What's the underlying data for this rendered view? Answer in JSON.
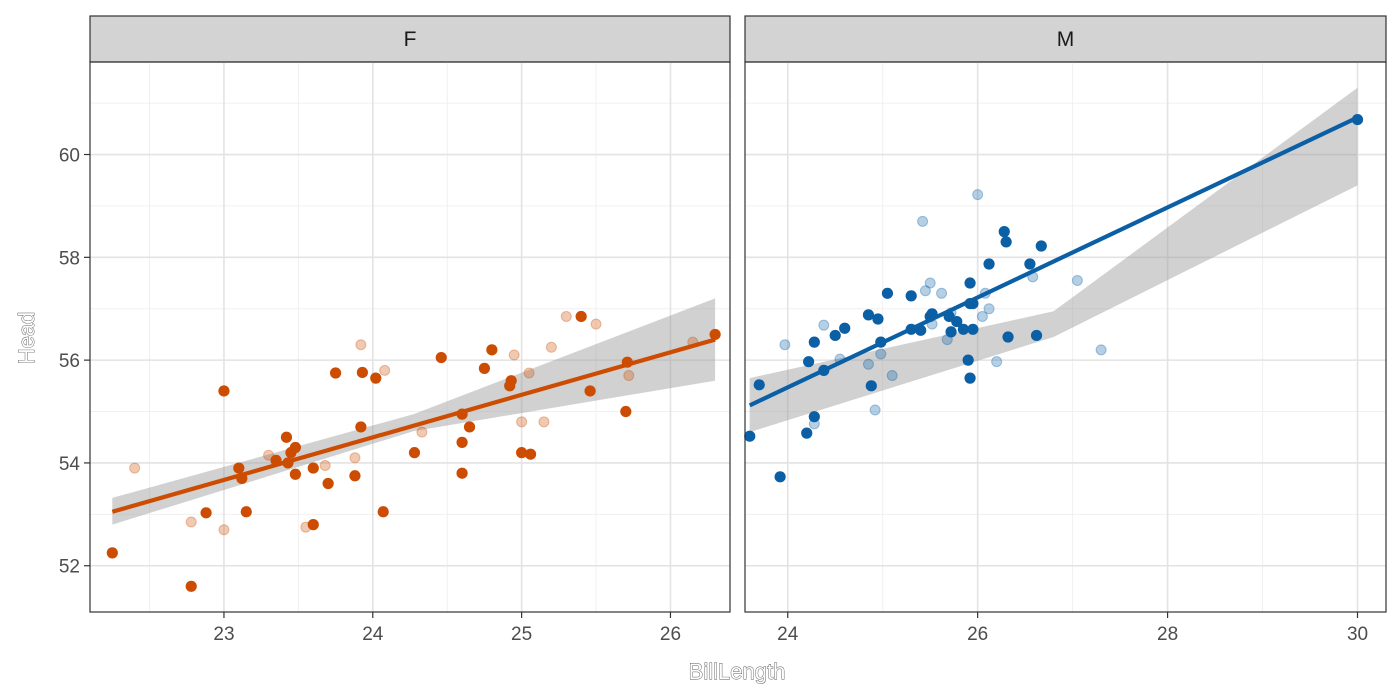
{
  "chart_data": {
    "type": "scatter",
    "xlabel": "BillLength",
    "ylabel": "Head",
    "ylim": [
      51.1,
      61.8
    ],
    "y_ticks": [
      52,
      54,
      56,
      58,
      60
    ],
    "grid": true,
    "facet_by": "Sex",
    "panels": [
      {
        "name": "F",
        "color": "#CC4C02",
        "xlim": [
          22.1,
          26.4
        ],
        "x_ticks": [
          23,
          24,
          25,
          26
        ],
        "points_solid": [
          [
            22.25,
            52.25
          ],
          [
            22.78,
            51.6
          ],
          [
            22.88,
            53.03
          ],
          [
            23.0,
            55.4
          ],
          [
            23.1,
            53.9
          ],
          [
            23.12,
            53.7
          ],
          [
            23.15,
            53.05
          ],
          [
            23.35,
            54.05
          ],
          [
            23.42,
            54.5
          ],
          [
            23.43,
            54.0
          ],
          [
            23.45,
            54.2
          ],
          [
            23.48,
            54.3
          ],
          [
            23.48,
            53.78
          ],
          [
            23.6,
            53.9
          ],
          [
            23.6,
            52.8
          ],
          [
            23.7,
            53.6
          ],
          [
            23.75,
            55.75
          ],
          [
            23.88,
            53.75
          ],
          [
            23.92,
            54.7
          ],
          [
            23.93,
            55.76
          ],
          [
            24.02,
            55.65
          ],
          [
            24.07,
            53.05
          ],
          [
            24.28,
            54.2
          ],
          [
            24.46,
            56.05
          ],
          [
            24.6,
            54.95
          ],
          [
            24.6,
            54.4
          ],
          [
            24.6,
            53.8
          ],
          [
            24.65,
            54.7
          ],
          [
            24.75,
            55.84
          ],
          [
            24.8,
            56.2
          ],
          [
            24.92,
            55.5
          ],
          [
            24.93,
            55.6
          ],
          [
            25.0,
            54.2
          ],
          [
            25.06,
            54.17
          ],
          [
            25.4,
            56.85
          ],
          [
            25.46,
            55.4
          ],
          [
            25.7,
            55.0
          ],
          [
            25.71,
            55.96
          ],
          [
            26.3,
            56.5
          ]
        ],
        "points_faded": [
          [
            22.4,
            53.9
          ],
          [
            22.78,
            52.85
          ],
          [
            23.0,
            52.7
          ],
          [
            23.3,
            54.15
          ],
          [
            23.55,
            52.75
          ],
          [
            23.68,
            53.95
          ],
          [
            23.88,
            54.1
          ],
          [
            23.92,
            56.3
          ],
          [
            24.08,
            55.8
          ],
          [
            24.33,
            54.6
          ],
          [
            24.95,
            56.1
          ],
          [
            25.0,
            54.8
          ],
          [
            25.05,
            55.75
          ],
          [
            25.15,
            54.8
          ],
          [
            25.2,
            56.25
          ],
          [
            25.3,
            56.85
          ],
          [
            25.5,
            56.7
          ],
          [
            25.72,
            55.7
          ],
          [
            26.15,
            56.35
          ]
        ],
        "fit": {
          "x0": 22.25,
          "y0": 53.05,
          "x1": 26.3,
          "y1": 56.4
        },
        "band": {
          "lo0": 52.8,
          "hi0": 53.32,
          "lom": 54.62,
          "him": 54.95,
          "lo1": 55.6,
          "hi1": 57.2
        }
      },
      {
        "name": "M",
        "color": "#0B5FA5",
        "xlim": [
          23.55,
          30.3
        ],
        "x_ticks": [
          24,
          26,
          28,
          30
        ],
        "points_solid": [
          [
            23.6,
            54.52
          ],
          [
            23.7,
            55.52
          ],
          [
            23.92,
            53.73
          ],
          [
            24.2,
            54.58
          ],
          [
            24.22,
            55.97
          ],
          [
            24.28,
            56.35
          ],
          [
            24.28,
            54.9
          ],
          [
            24.38,
            55.8
          ],
          [
            24.5,
            56.48
          ],
          [
            24.6,
            56.62
          ],
          [
            24.85,
            56.88
          ],
          [
            24.88,
            55.5
          ],
          [
            24.95,
            56.8
          ],
          [
            24.98,
            56.35
          ],
          [
            25.05,
            57.3
          ],
          [
            25.3,
            57.25
          ],
          [
            25.3,
            56.6
          ],
          [
            25.4,
            56.58
          ],
          [
            25.5,
            56.85
          ],
          [
            25.52,
            56.9
          ],
          [
            25.7,
            56.85
          ],
          [
            25.72,
            56.55
          ],
          [
            25.78,
            56.75
          ],
          [
            25.85,
            56.6
          ],
          [
            25.9,
            56.0
          ],
          [
            25.92,
            55.65
          ],
          [
            25.92,
            57.5
          ],
          [
            25.92,
            57.1
          ],
          [
            25.95,
            57.1
          ],
          [
            25.95,
            56.6
          ],
          [
            26.12,
            57.87
          ],
          [
            26.28,
            58.5
          ],
          [
            26.3,
            58.3
          ],
          [
            26.32,
            56.45
          ],
          [
            26.55,
            57.87
          ],
          [
            26.62,
            56.48
          ],
          [
            26.67,
            58.22
          ],
          [
            30.0,
            60.68
          ]
        ],
        "points_faded": [
          [
            23.97,
            56.3
          ],
          [
            24.28,
            54.76
          ],
          [
            24.38,
            56.68
          ],
          [
            24.55,
            56.02
          ],
          [
            24.85,
            55.92
          ],
          [
            24.92,
            55.03
          ],
          [
            24.98,
            56.12
          ],
          [
            25.1,
            55.7
          ],
          [
            25.42,
            58.7
          ],
          [
            25.45,
            57.35
          ],
          [
            25.5,
            57.5
          ],
          [
            25.52,
            56.7
          ],
          [
            25.62,
            57.3
          ],
          [
            25.68,
            56.4
          ],
          [
            25.72,
            56.92
          ],
          [
            26.0,
            59.22
          ],
          [
            26.05,
            56.85
          ],
          [
            26.08,
            57.3
          ],
          [
            26.12,
            57.0
          ],
          [
            26.2,
            55.97
          ],
          [
            26.58,
            57.62
          ],
          [
            27.05,
            57.55
          ],
          [
            27.3,
            56.2
          ]
        ],
        "fit": {
          "x0": 23.6,
          "y0": 55.12,
          "x1": 30.0,
          "y1": 60.72
        },
        "band": {
          "lo0": 54.6,
          "hi0": 55.65,
          "lom": 56.45,
          "him": 56.95,
          "lo1": 59.4,
          "hi1": 61.3
        }
      }
    ]
  }
}
